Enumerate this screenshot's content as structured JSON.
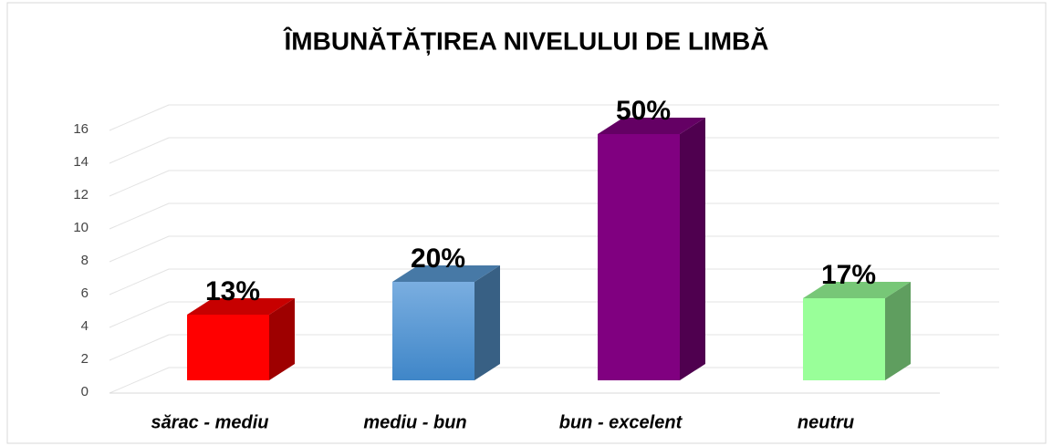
{
  "chart_data": {
    "type": "bar3d",
    "title": "ÎMBUNĂTĂȚIREA NIVELULUI DE LIMBĂ",
    "categories": [
      "sărac - mediu",
      "mediu - bun",
      "bun - excelent",
      "neutru"
    ],
    "values": [
      4,
      6,
      15,
      5
    ],
    "value_labels": [
      "13%",
      "20%",
      "50%",
      "17%"
    ],
    "colors": [
      "#ff0000",
      "#5b9bd5",
      "#800080",
      "#99ff99"
    ],
    "ylim": [
      0,
      16
    ],
    "yticks": [
      0,
      2,
      4,
      6,
      8,
      10,
      12,
      14,
      16
    ],
    "grid": true
  }
}
